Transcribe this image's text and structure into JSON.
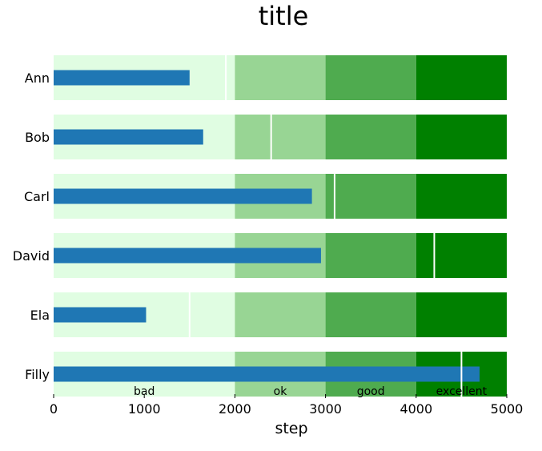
{
  "chart_data": {
    "type": "bar",
    "subtype": "bullet",
    "title": "title",
    "xlabel": "step",
    "ylabel": "",
    "xlim": [
      0,
      5000
    ],
    "xticks": [
      0,
      1000,
      2000,
      3000,
      4000,
      5000
    ],
    "grid": false,
    "legend": "none",
    "categories": [
      "Ann",
      "Bob",
      "Carl",
      "David",
      "Ela",
      "Filly"
    ],
    "values": [
      1500,
      1650,
      2850,
      2950,
      1020,
      4700
    ],
    "targets": [
      1900,
      2400,
      3100,
      4200,
      1500,
      4500
    ],
    "ranges": [
      {
        "label": "bad",
        "from": 0,
        "to": 2000,
        "color": "#e0fde2"
      },
      {
        "label": "ok",
        "from": 2000,
        "to": 3000,
        "color": "#98d594"
      },
      {
        "label": "good",
        "from": 3000,
        "to": 4000,
        "color": "#4fab4f"
      },
      {
        "label": "excellent",
        "from": 4000,
        "to": 5000,
        "color": "#008000"
      }
    ],
    "bar_color": "#1f77b4",
    "target_color": "#ffffff"
  }
}
